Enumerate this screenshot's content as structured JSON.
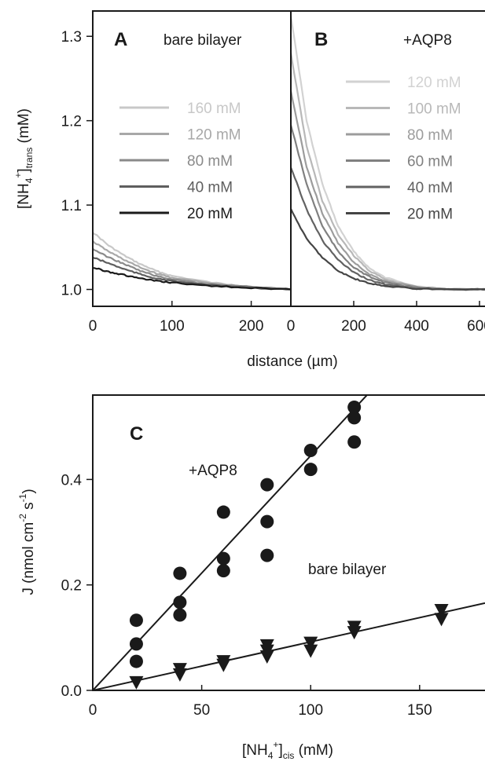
{
  "chart_data": [
    {
      "panel": "A",
      "type": "line",
      "title": "bare bilayer",
      "xlabel": "distance (µm)",
      "ylabel": {
        "pre": "[NH",
        "sub1": "4",
        "sup": "+",
        "post1": "]",
        "sub2": "trans",
        "post2": " (mM)"
      },
      "xlim": [
        0,
        250
      ],
      "ylim": [
        0.98,
        1.33
      ],
      "xticks": [
        0,
        100,
        200
      ],
      "yticks": [
        1.0,
        1.1,
        1.2,
        1.3
      ],
      "ytick_labels": [
        "1.0",
        "1.1",
        "1.2",
        "1.3"
      ],
      "series": [
        {
          "name": "160 mM",
          "color": "#c8c8c8",
          "x": [
            0,
            20,
            40,
            60,
            80,
            100,
            150,
            200,
            250
          ],
          "y": [
            1.068,
            1.052,
            1.04,
            1.03,
            1.022,
            1.016,
            1.008,
            1.003,
            1.0
          ]
        },
        {
          "name": "120 mM",
          "color": "#a8a8a8",
          "x": [
            0,
            20,
            40,
            60,
            80,
            100,
            150,
            200,
            250
          ],
          "y": [
            1.057,
            1.045,
            1.035,
            1.026,
            1.019,
            1.014,
            1.007,
            1.003,
            1.0
          ]
        },
        {
          "name": "80 mM",
          "color": "#8a8a8a",
          "x": [
            0,
            20,
            40,
            60,
            80,
            100,
            150,
            200,
            250
          ],
          "y": [
            1.048,
            1.038,
            1.03,
            1.022,
            1.016,
            1.012,
            1.006,
            1.003,
            1.0
          ]
        },
        {
          "name": "40 mM",
          "color": "#5e5e5e",
          "x": [
            0,
            20,
            40,
            60,
            80,
            100,
            150,
            200,
            250
          ],
          "y": [
            1.038,
            1.031,
            1.024,
            1.018,
            1.013,
            1.01,
            1.005,
            1.002,
            1.0
          ]
        },
        {
          "name": "20 mM",
          "color": "#1a1a1a",
          "x": [
            0,
            20,
            40,
            60,
            80,
            100,
            150,
            200,
            250
          ],
          "y": [
            1.026,
            1.021,
            1.017,
            1.013,
            1.01,
            1.008,
            1.004,
            1.002,
            1.0
          ]
        }
      ]
    },
    {
      "panel": "B",
      "type": "line",
      "title": "+AQP8",
      "xlim": [
        0,
        650
      ],
      "ylim": [
        0.98,
        1.33
      ],
      "xticks": [
        0,
        200,
        400,
        600
      ],
      "series": [
        {
          "name": "120 mM",
          "color": "#d2d2d2",
          "x": [
            0,
            50,
            100,
            150,
            200,
            250,
            300,
            400,
            500,
            650
          ],
          "y": [
            1.325,
            1.2,
            1.125,
            1.075,
            1.045,
            1.025,
            1.014,
            1.004,
            1.0,
            1.0
          ]
        },
        {
          "name": "100 mM",
          "color": "#b8b8b8",
          "x": [
            0,
            50,
            100,
            150,
            200,
            250,
            300,
            400,
            500,
            650
          ],
          "y": [
            1.28,
            1.17,
            1.105,
            1.065,
            1.04,
            1.022,
            1.012,
            1.003,
            1.0,
            1.0
          ]
        },
        {
          "name": "80 mM",
          "color": "#9c9c9c",
          "x": [
            0,
            50,
            100,
            150,
            200,
            250,
            300,
            400,
            500,
            650
          ],
          "y": [
            1.235,
            1.145,
            1.09,
            1.055,
            1.032,
            1.018,
            1.01,
            1.003,
            1.0,
            1.0
          ]
        },
        {
          "name": "60 mM",
          "color": "#808080",
          "x": [
            0,
            50,
            100,
            150,
            200,
            250,
            300,
            400,
            500,
            650
          ],
          "y": [
            1.195,
            1.125,
            1.075,
            1.045,
            1.026,
            1.015,
            1.008,
            1.002,
            1.0,
            1.0
          ]
        },
        {
          "name": "40 mM",
          "color": "#626262",
          "x": [
            0,
            50,
            100,
            150,
            200,
            250,
            300,
            400,
            500,
            650
          ],
          "y": [
            1.145,
            1.095,
            1.058,
            1.035,
            1.02,
            1.011,
            1.006,
            1.001,
            1.0,
            1.0
          ]
        },
        {
          "name": "20 mM",
          "color": "#454545",
          "x": [
            0,
            50,
            100,
            150,
            200,
            250,
            300,
            400,
            500,
            650
          ],
          "y": [
            1.095,
            1.06,
            1.038,
            1.022,
            1.013,
            1.007,
            1.004,
            1.001,
            1.0,
            1.0
          ]
        }
      ]
    },
    {
      "panel": "C",
      "type": "scatter",
      "xlabel": {
        "pre": "[NH",
        "sub1": "4",
        "sup": "+",
        "post1": "]",
        "sub2": "cis",
        "post2": " (mM)"
      },
      "ylabel": {
        "pre": "J (nmol cm",
        "sup1": "-2",
        "mid": " s",
        "sup2": "-1",
        "post": ")"
      },
      "xlim": [
        0,
        180
      ],
      "ylim": [
        0,
        0.56
      ],
      "xticks": [
        0,
        50,
        100,
        150
      ],
      "yticks": [
        0.0,
        0.2,
        0.4
      ],
      "ytick_labels": [
        "0.0",
        "0.2",
        "0.4"
      ],
      "series": [
        {
          "name": "+AQP8",
          "marker": "circle",
          "points": [
            [
              20,
              0.133
            ],
            [
              20,
              0.088
            ],
            [
              20,
              0.055
            ],
            [
              40,
              0.222
            ],
            [
              40,
              0.167
            ],
            [
              40,
              0.143
            ],
            [
              60,
              0.338
            ],
            [
              60,
              0.25
            ],
            [
              60,
              0.227
            ],
            [
              80,
              0.39
            ],
            [
              80,
              0.32
            ],
            [
              80,
              0.256
            ],
            [
              100,
              0.455
            ],
            [
              100,
              0.419
            ],
            [
              120,
              0.537
            ],
            [
              120,
              0.517
            ],
            [
              120,
              0.471
            ]
          ],
          "fit": {
            "slope": 0.00445,
            "intercept": 0.0
          }
        },
        {
          "name": "bare bilayer",
          "marker": "triangle-down",
          "points": [
            [
              20,
              0.015
            ],
            [
              40,
              0.04
            ],
            [
              40,
              0.03
            ],
            [
              60,
              0.055
            ],
            [
              60,
              0.048
            ],
            [
              80,
              0.085
            ],
            [
              80,
              0.075
            ],
            [
              80,
              0.064
            ],
            [
              100,
              0.09
            ],
            [
              100,
              0.075
            ],
            [
              120,
              0.12
            ],
            [
              120,
              0.11
            ],
            [
              160,
              0.152
            ],
            [
              160,
              0.135
            ]
          ],
          "fit": {
            "slope": 0.00092,
            "intercept": 0.0
          }
        }
      ]
    }
  ]
}
